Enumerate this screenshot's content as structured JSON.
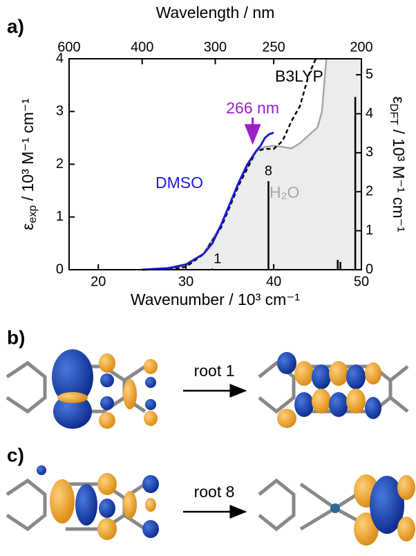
{
  "chart_data": {
    "type": "line",
    "panel_label": "a)",
    "xlabel": "Wavenumber / 10³ cm⁻¹",
    "x2label": "Wavelength / nm",
    "ylabel": {
      "symbol": "ε",
      "subscript": "exp",
      "rest": " / 10³ M⁻¹ cm⁻¹"
    },
    "y2label": {
      "symbol": "ε",
      "subscript": "DFT",
      "rest": " / 10³ M⁻¹ cm⁻¹"
    },
    "xlim": [
      16.67,
      50
    ],
    "xticks": [
      20,
      30,
      40,
      50
    ],
    "x2ticks": [
      600,
      400,
      300,
      250,
      200
    ],
    "ylim": [
      0,
      4
    ],
    "yticks": [
      0,
      1,
      2,
      3,
      4
    ],
    "y2lim": [
      0,
      5.41
    ],
    "y2ticks": [
      0,
      1,
      2,
      3,
      4,
      5
    ],
    "series": [
      {
        "name": "H₂O",
        "color": "#a6a6a6",
        "fill": "#ececec",
        "style": "area",
        "x": [
          26,
          28,
          30,
          32,
          34,
          36,
          38,
          39,
          40,
          41,
          42,
          43,
          44,
          45,
          45.5,
          46
        ],
        "values": [
          0,
          0.02,
          0.08,
          0.3,
          0.85,
          1.65,
          2.25,
          2.33,
          2.35,
          2.33,
          2.3,
          2.4,
          2.55,
          2.7,
          3.0,
          4.0
        ]
      },
      {
        "name": "B3LYP",
        "color": "#000000",
        "style": "dashed",
        "axis": "y2",
        "x": [
          28,
          30,
          32,
          34,
          36,
          38,
          39,
          40,
          41,
          42,
          43,
          44,
          44.8
        ],
        "values": [
          0,
          0.07,
          0.4,
          1.08,
          2.16,
          3.04,
          3.1,
          3.1,
          3.3,
          3.8,
          4.2,
          5.0,
          5.41
        ]
      },
      {
        "name": "DMSO",
        "color": "#1a1ad6",
        "style": "solid",
        "x": [
          25,
          28,
          30,
          32,
          33,
          34,
          35,
          36,
          37,
          38,
          38.5,
          39,
          39.5,
          40
        ],
        "values": [
          0,
          0.03,
          0.1,
          0.3,
          0.5,
          0.85,
          1.25,
          1.65,
          2.0,
          2.25,
          2.35,
          2.5,
          2.57,
          2.6
        ]
      },
      {
        "type": "stick",
        "color": "#000000",
        "axis": "y2",
        "x": [
          33,
          39.4,
          47.3,
          47.6,
          49.3
        ],
        "values": [
          0.03,
          2.27,
          0.25,
          0.2,
          4.43
        ]
      }
    ],
    "annotations": [
      {
        "text": "266 nm",
        "color": "#9a1fc9",
        "x": 37.6,
        "y": 2.33
      },
      {
        "text": "1"
      },
      {
        "text": "8"
      }
    ]
  },
  "panels": [
    {
      "label": "b)",
      "arrow_label": "root 1"
    },
    {
      "label": "c)",
      "arrow_label": "root 8"
    }
  ]
}
